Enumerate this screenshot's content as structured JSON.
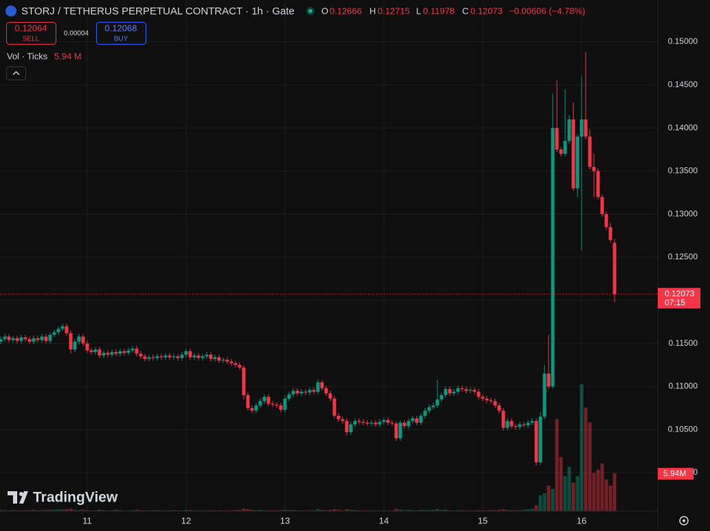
{
  "chart_data": {
    "type": "candlestick",
    "title": "STORJ / TETHERUS PERPETUAL CONTRACT · 1h · Gate",
    "up_color": "#089981",
    "down_color": "#f23645",
    "grid": true,
    "ylim": [
      0.09554,
      0.15486
    ],
    "yticks": [
      {
        "value": 0.1,
        "label": "0.10000"
      },
      {
        "value": 0.105,
        "label": "0.10500"
      },
      {
        "value": 0.11,
        "label": "0.11000"
      },
      {
        "value": 0.115,
        "label": "0.11500"
      },
      {
        "value": 0.12,
        "label": "0.12000"
      },
      {
        "value": 0.125,
        "label": "0.12500"
      },
      {
        "value": 0.13,
        "label": "0.13000"
      },
      {
        "value": 0.135,
        "label": "0.13500"
      },
      {
        "value": 0.14,
        "label": "0.14000"
      },
      {
        "value": 0.145,
        "label": "0.14500"
      },
      {
        "value": 0.15,
        "label": "0.15000"
      }
    ],
    "categories": [
      null,
      null,
      null,
      null,
      null,
      null,
      null,
      null,
      null,
      null,
      null,
      null,
      null,
      null,
      null,
      null,
      null,
      null,
      null,
      null,
      null,
      "11",
      null,
      null,
      null,
      null,
      null,
      null,
      null,
      null,
      null,
      null,
      null,
      null,
      null,
      null,
      null,
      null,
      null,
      null,
      null,
      null,
      null,
      null,
      null,
      "12",
      null,
      null,
      null,
      null,
      null,
      null,
      null,
      null,
      null,
      null,
      null,
      null,
      null,
      null,
      null,
      null,
      null,
      null,
      null,
      null,
      null,
      null,
      null,
      "13",
      null,
      null,
      null,
      null,
      null,
      null,
      null,
      null,
      null,
      null,
      null,
      null,
      null,
      null,
      null,
      null,
      null,
      null,
      null,
      null,
      null,
      null,
      null,
      "14",
      null,
      null,
      null,
      null,
      null,
      null,
      null,
      null,
      null,
      null,
      null,
      null,
      null,
      null,
      null,
      null,
      null,
      null,
      null,
      null,
      null,
      null,
      null,
      "15",
      null,
      null,
      null,
      null,
      null,
      null,
      null,
      null,
      null,
      null,
      null,
      null,
      null,
      null,
      null,
      null,
      null,
      null,
      null,
      null,
      null,
      null,
      null,
      "16",
      null,
      null,
      null,
      null,
      null,
      null,
      null,
      null
    ],
    "open": [
      0.1152,
      0.1155,
      0.1158,
      0.1154,
      0.1156,
      0.1153,
      0.1157,
      0.1155,
      0.1152,
      0.1156,
      0.1154,
      0.1158,
      0.1153,
      0.116,
      0.1163,
      0.1167,
      0.117,
      0.1162,
      0.1143,
      0.1152,
      0.1158,
      0.115,
      0.1142,
      0.114,
      0.1143,
      0.1136,
      0.1139,
      0.1137,
      0.114,
      0.1138,
      0.1141,
      0.1139,
      0.1142,
      0.1144,
      0.1138,
      0.1135,
      0.1132,
      0.1134,
      0.1133,
      0.1135,
      0.1134,
      0.1136,
      0.1134,
      0.1135,
      0.1133,
      0.1137,
      0.1141,
      0.1134,
      0.1136,
      0.1133,
      0.1135,
      0.1137,
      0.1132,
      0.1134,
      0.113,
      0.1131,
      0.1129,
      0.1127,
      0.1125,
      0.1122,
      0.109,
      0.1075,
      0.1072,
      0.1078,
      0.1083,
      0.1088,
      0.108,
      0.1079,
      0.1078,
      0.1073,
      0.1086,
      0.1091,
      0.1095,
      0.1092,
      0.1094,
      0.1093,
      0.1096,
      0.1094,
      0.1105,
      0.1098,
      0.1092,
      0.1086,
      0.1066,
      0.1062,
      0.106,
      0.1047,
      0.1056,
      0.106,
      0.1059,
      0.1058,
      0.1057,
      0.1058,
      0.1056,
      0.1059,
      0.1061,
      0.1058,
      0.1057,
      0.104,
      0.1058,
      0.1054,
      0.106,
      0.1063,
      0.1058,
      0.1066,
      0.1072,
      0.1076,
      0.1078,
      0.1085,
      0.109,
      0.1097,
      0.1092,
      0.1094,
      0.1098,
      0.1097,
      0.1095,
      0.1096,
      0.1094,
      0.1088,
      0.1086,
      0.1084,
      0.1083,
      0.1078,
      0.1072,
      0.1052,
      0.106,
      0.1054,
      0.1053,
      0.1056,
      0.1055,
      0.1058,
      0.106,
      0.1012,
      0.1065,
      0.1115,
      0.11,
      0.14,
      0.1375,
      0.137,
      0.1385,
      0.141,
      0.133,
      0.139,
      0.141,
      0.139,
      0.1355,
      0.135,
      0.132,
      0.13,
      0.1285,
      0.12666
    ],
    "high": [
      0.1158,
      0.1161,
      0.1161,
      0.1159,
      0.1159,
      0.116,
      0.116,
      0.1158,
      0.1159,
      0.1159,
      0.1161,
      0.1161,
      0.1163,
      0.1166,
      0.117,
      0.1173,
      0.1173,
      0.1165,
      0.1155,
      0.1161,
      0.1161,
      0.1153,
      0.1145,
      0.1146,
      0.1146,
      0.1142,
      0.1142,
      0.1143,
      0.1143,
      0.1144,
      0.1144,
      0.1145,
      0.1147,
      0.1147,
      0.1141,
      0.1138,
      0.1137,
      0.1137,
      0.1138,
      0.1138,
      0.1139,
      0.1139,
      0.1138,
      0.1138,
      0.114,
      0.1144,
      0.1144,
      0.1139,
      0.1139,
      0.1138,
      0.114,
      0.114,
      0.1137,
      0.1137,
      0.1134,
      0.1134,
      0.1132,
      0.113,
      0.1128,
      0.1125,
      0.1093,
      0.1078,
      0.1081,
      0.1086,
      0.1091,
      0.1091,
      0.1083,
      0.1082,
      0.1081,
      0.1089,
      0.1094,
      0.1098,
      0.1098,
      0.1097,
      0.1097,
      0.1099,
      0.1099,
      0.1108,
      0.1108,
      0.1101,
      0.1095,
      0.1089,
      0.1069,
      0.1065,
      0.1063,
      0.1059,
      0.1063,
      0.1063,
      0.1062,
      0.1061,
      0.1061,
      0.1061,
      0.1062,
      0.1064,
      0.1064,
      0.1061,
      0.106,
      0.1061,
      0.1061,
      0.1063,
      0.1066,
      0.1066,
      0.1069,
      0.1075,
      0.1079,
      0.1081,
      0.1108,
      0.1093,
      0.11,
      0.11,
      0.1097,
      0.1101,
      0.1101,
      0.11,
      0.1099,
      0.1099,
      0.1097,
      0.1091,
      0.1089,
      0.1087,
      0.1086,
      0.1081,
      0.1075,
      0.1063,
      0.1063,
      0.1057,
      0.1059,
      0.1059,
      0.1061,
      0.1063,
      0.1063,
      0.107,
      0.1125,
      0.116,
      0.144,
      0.1455,
      0.1378,
      0.1445,
      0.1415,
      0.143,
      0.1393,
      0.146,
      0.1488,
      0.1398,
      0.137,
      0.1353,
      0.1323,
      0.1303,
      0.129,
      0.12715
    ],
    "low": [
      0.1149,
      0.1152,
      0.1151,
      0.1151,
      0.115,
      0.115,
      0.1152,
      0.1149,
      0.1149,
      0.1151,
      0.1151,
      0.115,
      0.115,
      0.1157,
      0.116,
      0.1164,
      0.1159,
      0.1138,
      0.114,
      0.1149,
      0.1147,
      0.1139,
      0.1137,
      0.1137,
      0.1133,
      0.1133,
      0.1134,
      0.1134,
      0.1135,
      0.1135,
      0.1136,
      0.1136,
      0.1139,
      0.1135,
      0.1132,
      0.1129,
      0.1129,
      0.113,
      0.113,
      0.1131,
      0.1131,
      0.1131,
      0.1131,
      0.113,
      0.113,
      0.1134,
      0.1131,
      0.1131,
      0.113,
      0.113,
      0.1132,
      0.1129,
      0.1129,
      0.1127,
      0.1127,
      0.1126,
      0.1124,
      0.1122,
      0.1119,
      0.1085,
      0.1072,
      0.1069,
      0.1069,
      0.1075,
      0.108,
      0.1077,
      0.1076,
      0.1075,
      0.107,
      0.107,
      0.1083,
      0.1088,
      0.1089,
      0.1089,
      0.109,
      0.109,
      0.1091,
      0.1091,
      0.1095,
      0.1089,
      0.1083,
      0.1063,
      0.1059,
      0.1057,
      0.1043,
      0.1044,
      0.1053,
      0.1056,
      0.1055,
      0.1054,
      0.1054,
      0.1053,
      0.1053,
      0.1056,
      0.1055,
      0.1054,
      0.1037,
      0.1037,
      0.1051,
      0.1051,
      0.1057,
      0.1055,
      0.1055,
      0.1063,
      0.1069,
      0.1073,
      0.1075,
      0.1082,
      0.1087,
      0.1089,
      0.1089,
      0.1091,
      0.1094,
      0.1092,
      0.1092,
      0.1091,
      0.1085,
      0.1083,
      0.1081,
      0.108,
      0.1075,
      0.1069,
      0.1049,
      0.1049,
      0.1051,
      0.105,
      0.105,
      0.1052,
      0.1052,
      0.1055,
      0.1008,
      0.1009,
      0.1062,
      0.1097,
      0.1098,
      0.1372,
      0.1367,
      0.1367,
      0.1382,
      0.1327,
      0.132,
      0.1258,
      0.1387,
      0.1352,
      0.132,
      0.1317,
      0.1297,
      0.1282,
      0.1267,
      0.11978
    ],
    "close": [
      0.1155,
      0.1158,
      0.1154,
      0.1156,
      0.1153,
      0.1157,
      0.1155,
      0.1152,
      0.1156,
      0.1154,
      0.1158,
      0.1153,
      0.116,
      0.1163,
      0.1167,
      0.117,
      0.1162,
      0.1143,
      0.1152,
      0.1158,
      0.115,
      0.1142,
      0.114,
      0.1143,
      0.1136,
      0.1139,
      0.1137,
      0.114,
      0.1138,
      0.1141,
      0.1139,
      0.1142,
      0.1144,
      0.1138,
      0.1135,
      0.1132,
      0.1134,
      0.1133,
      0.1135,
      0.1134,
      0.1136,
      0.1134,
      0.1135,
      0.1133,
      0.1137,
      0.1141,
      0.1134,
      0.1136,
      0.1133,
      0.1135,
      0.1137,
      0.1132,
      0.1134,
      0.113,
      0.1131,
      0.1129,
      0.1127,
      0.1125,
      0.1122,
      0.109,
      0.1075,
      0.1072,
      0.1078,
      0.1083,
      0.1088,
      0.108,
      0.1079,
      0.1078,
      0.1073,
      0.1086,
      0.1091,
      0.1095,
      0.1092,
      0.1094,
      0.1093,
      0.1096,
      0.1094,
      0.1105,
      0.1098,
      0.1092,
      0.1086,
      0.1066,
      0.1062,
      0.106,
      0.1047,
      0.1056,
      0.106,
      0.1059,
      0.1058,
      0.1057,
      0.1058,
      0.1056,
      0.1059,
      0.1061,
      0.1058,
      0.1057,
      0.104,
      0.1058,
      0.1054,
      0.106,
      0.1063,
      0.1058,
      0.1066,
      0.1072,
      0.1076,
      0.1078,
      0.1085,
      0.109,
      0.1097,
      0.1092,
      0.1094,
      0.1098,
      0.1097,
      0.1095,
      0.1096,
      0.1094,
      0.1088,
      0.1086,
      0.1084,
      0.1083,
      0.1078,
      0.1072,
      0.1052,
      0.106,
      0.1054,
      0.1053,
      0.1056,
      0.1055,
      0.1058,
      0.106,
      0.1012,
      0.1065,
      0.1115,
      0.11,
      0.14,
      0.1375,
      0.137,
      0.1385,
      0.141,
      0.133,
      0.139,
      0.141,
      0.139,
      0.1355,
      0.135,
      0.132,
      0.13,
      0.1285,
      0.127,
      0.12073
    ],
    "volume": [
      0.2,
      0.15,
      0.1,
      0.2,
      0.15,
      0.1,
      0.12,
      0.15,
      0.2,
      0.1,
      0.15,
      0.2,
      0.25,
      0.2,
      0.3,
      0.25,
      0.3,
      0.35,
      0.2,
      0.15,
      0.2,
      0.15,
      0.1,
      0.15,
      0.2,
      0.15,
      0.1,
      0.15,
      0.2,
      0.15,
      0.1,
      0.12,
      0.15,
      0.2,
      0.15,
      0.1,
      0.12,
      0.1,
      0.15,
      0.1,
      0.12,
      0.1,
      0.15,
      0.1,
      0.12,
      0.2,
      0.15,
      0.1,
      0.12,
      0.1,
      0.1,
      0.12,
      0.1,
      0.15,
      0.1,
      0.12,
      0.1,
      0.15,
      0.2,
      0.4,
      0.3,
      0.2,
      0.15,
      0.2,
      0.15,
      0.1,
      0.12,
      0.1,
      0.15,
      0.2,
      0.15,
      0.2,
      0.15,
      0.1,
      0.12,
      0.15,
      0.1,
      0.3,
      0.2,
      0.15,
      0.2,
      0.3,
      0.2,
      0.15,
      0.3,
      0.2,
      0.15,
      0.1,
      0.12,
      0.1,
      0.1,
      0.12,
      0.1,
      0.15,
      0.1,
      0.12,
      0.35,
      0.25,
      0.15,
      0.2,
      0.15,
      0.12,
      0.2,
      0.2,
      0.15,
      0.2,
      0.35,
      0.2,
      0.25,
      0.15,
      0.1,
      0.15,
      0.12,
      0.1,
      0.12,
      0.1,
      0.15,
      0.12,
      0.1,
      0.15,
      0.15,
      0.2,
      0.3,
      0.2,
      0.15,
      0.12,
      0.15,
      0.2,
      0.3,
      0.4,
      0.9,
      2.5,
      2.8,
      4.0,
      3.5,
      14.5,
      8.5,
      5.5,
      7,
      4.5,
      5.5,
      20,
      16.3,
      14,
      6,
      6.5,
      7.5,
      5,
      4,
      5.94
    ]
  },
  "ui": {
    "sell_price": "0.12064",
    "sell_label": "SELL",
    "spread": "0.00004",
    "buy_price": "0.12068",
    "buy_label": "BUY",
    "o": "O",
    "h": "H",
    "l": "L",
    "c": "C",
    "change": "−0.00606 (−4.78%)",
    "volume_title": "Vol · Ticks",
    "volume_value": "5.94 M",
    "volume_tag": "5.94M",
    "countdown": "07:15",
    "brand": "TradingView"
  }
}
